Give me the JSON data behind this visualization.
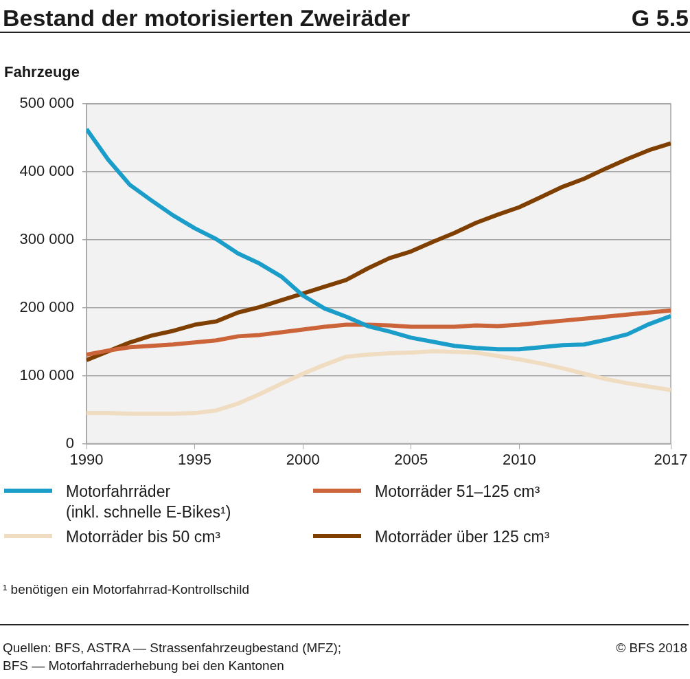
{
  "chart_data": {
    "type": "line",
    "title": "Bestand der motorisierten Zweiräder",
    "subtitle": "G 5.5",
    "ylabel": "Fahrzeuge",
    "x": [
      1990,
      1991,
      1992,
      1993,
      1994,
      1995,
      1996,
      1997,
      1998,
      1999,
      2000,
      2001,
      2002,
      2003,
      2004,
      2005,
      2006,
      2007,
      2008,
      2009,
      2010,
      2011,
      2012,
      2013,
      2014,
      2015,
      2016,
      2017
    ],
    "series": [
      {
        "name": "Motorfahrräder\n(inkl. schnelle E-Bikes¹)",
        "color": "#1b9dc9",
        "values": [
          463000,
          418000,
          381000,
          358000,
          336000,
          317000,
          301000,
          280000,
          265000,
          246000,
          218000,
          199000,
          187000,
          173000,
          165000,
          156000,
          150000,
          144000,
          141000,
          139000,
          139000,
          142000,
          145000,
          146000,
          153000,
          161000,
          176000,
          188000
        ]
      },
      {
        "name": "Motorräder bis 50 cm³",
        "color": "#f0dcc0",
        "values": [
          45000,
          45000,
          44000,
          44000,
          44000,
          45000,
          49000,
          59000,
          73000,
          88000,
          103000,
          116000,
          128000,
          131000,
          133000,
          134000,
          136000,
          135000,
          134000,
          129000,
          124000,
          118000,
          111000,
          103000,
          95000,
          89000,
          84000,
          79000
        ]
      },
      {
        "name": "Motorräder 51–125 cm³",
        "color": "#cc643a",
        "values": [
          131000,
          137000,
          142000,
          144000,
          146000,
          149000,
          152000,
          158000,
          160000,
          164000,
          168000,
          172000,
          175000,
          175000,
          174000,
          172000,
          172000,
          172000,
          174000,
          173000,
          175000,
          178000,
          181000,
          184000,
          187000,
          190000,
          193000,
          196000
        ]
      },
      {
        "name": "Motorräder über 125 cm³",
        "color": "#7f3f00",
        "values": [
          123000,
          136000,
          149000,
          159000,
          166000,
          175000,
          180000,
          193000,
          201000,
          211000,
          221000,
          231000,
          241000,
          258000,
          273000,
          283000,
          297000,
          310000,
          325000,
          337000,
          348000,
          363000,
          378000,
          390000,
          405000,
          419000,
          432000,
          442000
        ]
      }
    ],
    "xlim": [
      1990,
      2017
    ],
    "xticks": [
      1990,
      1995,
      2000,
      2005,
      2010,
      2017
    ],
    "ylim": [
      0,
      500000
    ],
    "yticks": [
      {
        "value": 0,
        "label": "0"
      },
      {
        "value": 100000,
        "label": "100 000"
      },
      {
        "value": 200000,
        "label": "200 000"
      },
      {
        "value": 300000,
        "label": "300 000"
      },
      {
        "value": 400000,
        "label": "400 000"
      },
      {
        "value": 500000,
        "label": "500 000"
      }
    ],
    "grid": "y",
    "legend": "bottom",
    "marker": "none",
    "line_style": "solid",
    "annotations": [
      "¹ benötigen ein Motorfahrrad-Kontrollschild",
      "Quellen: BFS, ASTRA — Strassenfahrzeugbestand (MFZ);\nBFS — Motorfahrraderhebung bei den Kantonen",
      "© BFS 2018"
    ]
  }
}
